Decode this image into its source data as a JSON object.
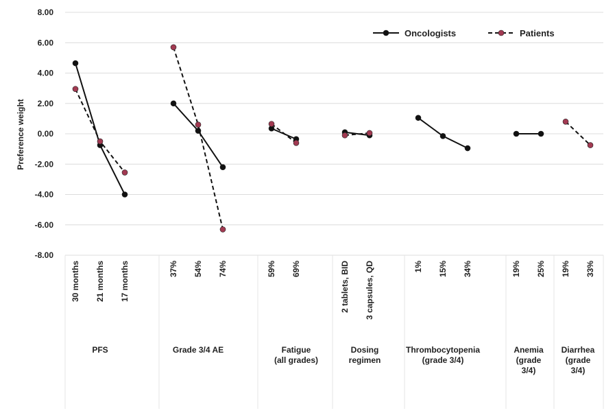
{
  "chart_data": {
    "type": "line",
    "ylabel": "Preference weight",
    "ylim": [
      -8,
      8
    ],
    "y_ticks": [
      "8.00",
      "6.00",
      "4.00",
      "2.00",
      "0.00",
      "-2.00",
      "-4.00",
      "-6.00",
      "-8.00"
    ],
    "grid": "horizontal",
    "legend_position": "top-right",
    "groups": [
      {
        "label": [
          "PFS"
        ],
        "categories": [
          "30 months",
          "21 months",
          "17 months"
        ]
      },
      {
        "label": [
          "Grade 3/4 AE"
        ],
        "categories": [
          "37%",
          "54%",
          "74%"
        ]
      },
      {
        "label": [
          "Fatigue",
          "(all grades)"
        ],
        "categories": [
          "59%",
          "69%"
        ]
      },
      {
        "label": [
          "Dosing",
          "regimen"
        ],
        "categories": [
          "2 tablets, BID",
          "3 capsules, QD"
        ]
      },
      {
        "label": [
          "Thrombocytopenia",
          "(grade 3/4)"
        ],
        "categories": [
          "1%",
          "15%",
          "34%"
        ]
      },
      {
        "label": [
          "Anemia",
          "(grade",
          "3/4)"
        ],
        "categories": [
          "19%",
          "25%"
        ]
      },
      {
        "label": [
          "Diarrhea",
          "(grade",
          "3/4)"
        ],
        "categories": [
          "19%",
          "33%"
        ]
      }
    ],
    "series": [
      {
        "name": "Oncologists",
        "color": "#111111",
        "marker_color": "#111111",
        "dash": "solid",
        "values": [
          [
            4.65,
            -0.75,
            -4.0
          ],
          [
            2.0,
            0.2,
            -2.2
          ],
          [
            0.35,
            -0.35
          ],
          [
            0.1,
            -0.1
          ],
          [
            1.05,
            -0.15,
            -0.95
          ],
          [
            0.0,
            0.0
          ],
          null
        ]
      },
      {
        "name": "Patients",
        "color": "#111111",
        "marker_color": "#a23a52",
        "dash": "dashed",
        "values": [
          [
            2.95,
            -0.5,
            -2.55
          ],
          [
            5.7,
            0.6,
            -6.3
          ],
          [
            0.65,
            -0.6
          ],
          [
            -0.1,
            0.05
          ],
          null,
          null,
          [
            0.8,
            -0.75
          ]
        ]
      }
    ]
  }
}
